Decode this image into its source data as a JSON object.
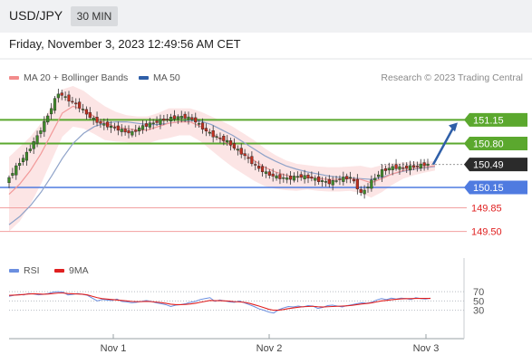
{
  "header": {
    "pair": "USD/JPY",
    "timeframe": "30 MIN"
  },
  "timestamp": "Friday, November 3, 2023 12:49:56 AM CET",
  "legend": {
    "ma20": {
      "label": "MA 20 + Bollinger Bands",
      "color": "#f28b8b"
    },
    "ma50": {
      "label": "MA 50",
      "color": "#2f5fa8"
    }
  },
  "credit": "Research © 2023 Trading Central",
  "rsi_legend": {
    "rsi": {
      "label": "RSI",
      "color": "#6b8fe0"
    },
    "ma9": {
      "label": "9MA",
      "color": "#e02020"
    }
  },
  "chart_data": {
    "type": "candlestick",
    "price_axis_range": [
      149.2,
      151.65
    ],
    "x_tick_labels": [
      "Nov 1",
      "Nov 2",
      "Nov 3"
    ],
    "levels": [
      {
        "label": "151.15",
        "value": 151.15,
        "kind": "resistance",
        "color": "#5ba82e",
        "text_color": "#ffffff"
      },
      {
        "label": "150.80",
        "value": 150.8,
        "kind": "resistance",
        "color": "#5ba82e",
        "text_color": "#ffffff"
      },
      {
        "label": "150.49",
        "value": 150.49,
        "kind": "current",
        "color": "#2b2b2b",
        "text_color": "#ffffff"
      },
      {
        "label": "150.15",
        "value": 150.15,
        "kind": "pivot",
        "color": "#4f7be0",
        "text_color": "#ffffff"
      },
      {
        "label": "149.85",
        "value": 149.85,
        "kind": "support",
        "color": "#f2a0a0",
        "text_color": "#e02020"
      },
      {
        "label": "149.50",
        "value": 149.5,
        "kind": "support",
        "color": "#f2a0a0",
        "text_color": "#e02020"
      }
    ],
    "forecast_arrow": {
      "from": 150.49,
      "to": 151.15,
      "color": "#2f5fa8"
    },
    "price_series": [
      150.22,
      150.45,
      150.65,
      150.9,
      151.2,
      151.55,
      151.45,
      151.35,
      151.2,
      151.1,
      151.05,
      151.0,
      150.95,
      151.05,
      151.1,
      151.15,
      151.18,
      151.2,
      151.15,
      151.0,
      150.9,
      150.85,
      150.72,
      150.6,
      150.45,
      150.35,
      150.3,
      150.28,
      150.32,
      150.3,
      150.25,
      150.22,
      150.28,
      150.3,
      150.05,
      150.25,
      150.4,
      150.45,
      150.44,
      150.46,
      150.49
    ],
    "ma20_series": [
      150.05,
      150.2,
      150.4,
      150.65,
      150.95,
      151.25,
      151.35,
      151.3,
      151.2,
      151.1,
      151.05,
      151.02,
      151.0,
      151.0,
      151.05,
      151.1,
      151.12,
      151.12,
      151.05,
      150.95,
      150.85,
      150.75,
      150.65,
      150.55,
      150.45,
      150.38,
      150.33,
      150.3,
      150.3,
      150.28,
      150.27,
      150.27,
      150.28,
      150.27,
      150.22,
      150.28,
      150.35,
      150.4,
      150.43,
      150.45,
      150.47
    ],
    "ma50_series": [
      149.6,
      149.72,
      149.88,
      150.08,
      150.32,
      150.58,
      150.8,
      150.95,
      151.05,
      151.1,
      151.12,
      151.12,
      151.1,
      151.08,
      151.08,
      151.1,
      151.12,
      151.14,
      151.13,
      151.08,
      151.0,
      150.92,
      150.82,
      150.72,
      150.62,
      150.54,
      150.47,
      150.42,
      150.38,
      150.35,
      150.32,
      150.3,
      150.29,
      150.28,
      150.27,
      150.3,
      150.35,
      150.39,
      150.42,
      150.44,
      150.46
    ],
    "bb_width_series": [
      0.55,
      0.55,
      0.5,
      0.45,
      0.4,
      0.35,
      0.3,
      0.28,
      0.26,
      0.25,
      0.22,
      0.2,
      0.2,
      0.2,
      0.2,
      0.22,
      0.2,
      0.2,
      0.22,
      0.25,
      0.28,
      0.3,
      0.3,
      0.3,
      0.28,
      0.25,
      0.22,
      0.2,
      0.18,
      0.18,
      0.18,
      0.18,
      0.18,
      0.2,
      0.22,
      0.2,
      0.16,
      0.12,
      0.1,
      0.08,
      0.07
    ],
    "rsi": {
      "range": [
        0,
        100
      ],
      "ticks": [
        70,
        50,
        30
      ],
      "rsi_series": [
        60,
        62,
        64,
        63,
        66,
        65,
        63,
        64,
        66,
        69,
        70,
        69,
        63,
        64,
        66,
        64,
        62,
        56,
        50,
        53,
        52,
        51,
        54,
        49,
        48,
        46,
        47,
        49,
        51,
        49,
        46,
        44,
        42,
        38,
        41,
        42,
        44,
        47,
        49,
        53,
        55,
        57,
        49,
        52,
        50,
        48,
        47,
        50,
        46,
        42,
        38,
        33,
        30,
        26,
        24,
        31,
        35,
        38,
        37,
        39,
        37,
        40,
        39,
        34,
        36,
        40,
        41,
        39,
        37,
        40,
        42,
        44,
        46,
        45,
        47,
        52,
        55,
        53,
        56,
        54,
        56,
        55,
        53,
        57,
        55,
        54,
        56
      ],
      "ma9_series": [
        62,
        62.5,
        63,
        64,
        65,
        65.5,
        65,
        64.5,
        65,
        66,
        67,
        67,
        66,
        65.5,
        65,
        64.5,
        63,
        60,
        57,
        55,
        54,
        53,
        52,
        51,
        50,
        49,
        48.5,
        48.5,
        49,
        48.5,
        47.5,
        46.5,
        45,
        43,
        42,
        42,
        42.5,
        43.5,
        45,
        47,
        49,
        51,
        50.5,
        50.5,
        50,
        49.5,
        48.5,
        48,
        47,
        45,
        42,
        39,
        35.5,
        32,
        30,
        30,
        31.5,
        33.5,
        35,
        36.5,
        37.5,
        38,
        38.5,
        37.5,
        37,
        37.5,
        38,
        38.5,
        39,
        39.5,
        40.5,
        42,
        43.5,
        44.5,
        46,
        48,
        50,
        51,
        52.5,
        53.5,
        54.5,
        55,
        55,
        55.5,
        55.5,
        55.5,
        55.5
      ]
    }
  }
}
